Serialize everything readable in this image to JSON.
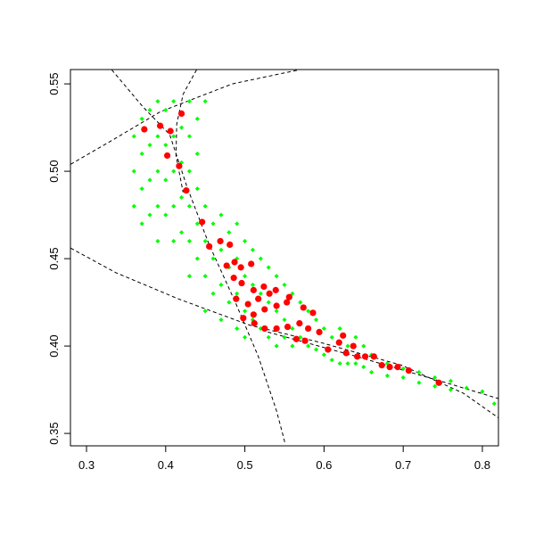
{
  "chart_data": {
    "type": "scatter",
    "xlim": [
      0.2797,
      0.8203
    ],
    "ylim": [
      0.3429,
      0.5582
    ],
    "xticks": [
      0.3,
      0.4,
      0.5,
      0.6,
      0.7,
      0.8
    ],
    "yticks": [
      0.35,
      {
        "value": 0.4,
        "label": "0.40"
      },
      0.45,
      {
        "value": 0.5,
        "label": "0.50"
      },
      0.55
    ],
    "series": [
      {
        "color": "#00ff00",
        "marker": "diamond",
        "x": [
          0.36,
          0.36,
          0.36,
          0.37,
          0.37,
          0.37,
          0.37,
          0.38,
          0.38,
          0.38,
          0.38,
          0.39,
          0.39,
          0.39,
          0.39,
          0.39,
          0.4,
          0.4,
          0.4,
          0.4,
          0.41,
          0.41,
          0.41,
          0.41,
          0.41,
          0.42,
          0.42,
          0.42,
          0.42,
          0.43,
          0.43,
          0.43,
          0.43,
          0.43,
          0.43,
          0.44,
          0.44,
          0.44,
          0.44,
          0.44,
          0.45,
          0.45,
          0.45,
          0.45,
          0.45,
          0.46,
          0.46,
          0.46,
          0.47,
          0.47,
          0.47,
          0.47,
          0.48,
          0.48,
          0.48,
          0.49,
          0.49,
          0.49,
          0.49,
          0.5,
          0.5,
          0.5,
          0.5,
          0.51,
          0.51,
          0.51,
          0.52,
          0.52,
          0.52,
          0.53,
          0.53,
          0.53,
          0.54,
          0.54,
          0.54,
          0.55,
          0.55,
          0.55,
          0.56,
          0.56,
          0.56,
          0.57,
          0.57,
          0.58,
          0.58,
          0.59,
          0.59,
          0.6,
          0.6,
          0.61,
          0.61,
          0.62,
          0.62,
          0.63,
          0.63,
          0.64,
          0.64,
          0.65,
          0.65,
          0.66,
          0.66,
          0.68,
          0.68,
          0.7,
          0.7,
          0.72,
          0.72,
          0.74,
          0.74,
          0.76,
          0.76,
          0.78,
          0.8,
          0.815
        ],
        "y": [
          0.52,
          0.5,
          0.48,
          0.53,
          0.51,
          0.49,
          0.47,
          0.535,
          0.515,
          0.495,
          0.475,
          0.54,
          0.52,
          0.5,
          0.48,
          0.46,
          0.535,
          0.515,
          0.495,
          0.475,
          0.54,
          0.52,
          0.5,
          0.48,
          0.46,
          0.525,
          0.505,
          0.485,
          0.465,
          0.54,
          0.52,
          0.5,
          0.48,
          0.46,
          0.44,
          0.53,
          0.51,
          0.49,
          0.47,
          0.45,
          0.54,
          0.48,
          0.46,
          0.44,
          0.42,
          0.47,
          0.45,
          0.43,
          0.475,
          0.455,
          0.435,
          0.415,
          0.465,
          0.445,
          0.425,
          0.47,
          0.45,
          0.43,
          0.41,
          0.46,
          0.44,
          0.42,
          0.405,
          0.455,
          0.435,
          0.415,
          0.45,
          0.43,
          0.41,
          0.445,
          0.425,
          0.405,
          0.44,
          0.42,
          0.4,
          0.435,
          0.415,
          0.405,
          0.43,
          0.41,
          0.4,
          0.425,
          0.405,
          0.42,
          0.4,
          0.415,
          0.398,
          0.41,
          0.395,
          0.405,
          0.392,
          0.41,
          0.39,
          0.4,
          0.39,
          0.405,
          0.39,
          0.4,
          0.388,
          0.395,
          0.385,
          0.39,
          0.383,
          0.387,
          0.382,
          0.385,
          0.379,
          0.382,
          0.377,
          0.38,
          0.375,
          0.376,
          0.374,
          0.367
        ]
      },
      {
        "color": "#ff0000",
        "marker": "circle",
        "x": [
          0.373,
          0.393,
          0.406,
          0.42,
          0.402,
          0.417,
          0.426,
          0.446,
          0.455,
          0.469,
          0.481,
          0.477,
          0.487,
          0.495,
          0.508,
          0.486,
          0.496,
          0.511,
          0.524,
          0.489,
          0.504,
          0.517,
          0.531,
          0.539,
          0.556,
          0.498,
          0.511,
          0.525,
          0.54,
          0.553,
          0.574,
          0.586,
          0.512,
          0.525,
          0.54,
          0.554,
          0.569,
          0.58,
          0.594,
          0.565,
          0.576,
          0.605,
          0.619,
          0.624,
          0.628,
          0.637,
          0.642,
          0.652,
          0.663,
          0.673,
          0.683,
          0.693,
          0.707,
          0.745
        ],
        "y": [
          0.524,
          0.526,
          0.523,
          0.533,
          0.509,
          0.503,
          0.489,
          0.471,
          0.457,
          0.46,
          0.458,
          0.446,
          0.448,
          0.445,
          0.447,
          0.439,
          0.436,
          0.432,
          0.434,
          0.427,
          0.424,
          0.427,
          0.43,
          0.432,
          0.428,
          0.416,
          0.418,
          0.421,
          0.423,
          0.425,
          0.422,
          0.419,
          0.413,
          0.41,
          0.41,
          0.411,
          0.413,
          0.41,
          0.408,
          0.404,
          0.403,
          0.398,
          0.402,
          0.406,
          0.396,
          0.4,
          0.394,
          0.394,
          0.394,
          0.389,
          0.388,
          0.388,
          0.386,
          0.379
        ]
      }
    ],
    "curves": [
      {
        "x": [
          0.332,
          0.371,
          0.405,
          0.427,
          0.455,
          0.489,
          0.517,
          0.54,
          0.551
        ],
        "y": [
          0.558,
          0.537,
          0.521,
          0.491,
          0.458,
          0.424,
          0.394,
          0.363,
          0.344
        ]
      },
      {
        "x": [
          0.439,
          0.422,
          0.414,
          0.413,
          0.422
        ],
        "y": [
          0.558,
          0.544,
          0.527,
          0.509,
          0.488
        ]
      },
      {
        "x": [
          0.28,
          0.326,
          0.393,
          0.484,
          0.568
        ],
        "y": [
          0.504,
          0.516,
          0.534,
          0.55,
          0.558
        ]
      },
      {
        "x": [
          0.28,
          0.337,
          0.416,
          0.506,
          0.596,
          0.698,
          0.776,
          0.82
        ],
        "y": [
          0.456,
          0.442,
          0.427,
          0.412,
          0.402,
          0.389,
          0.373,
          0.359
        ]
      },
      {
        "x": [
          0.529,
          0.641,
          0.754,
          0.82
        ],
        "y": [
          0.408,
          0.394,
          0.379,
          0.37
        ]
      }
    ],
    "curve_color": "#000000",
    "curve_dashed": true
  }
}
